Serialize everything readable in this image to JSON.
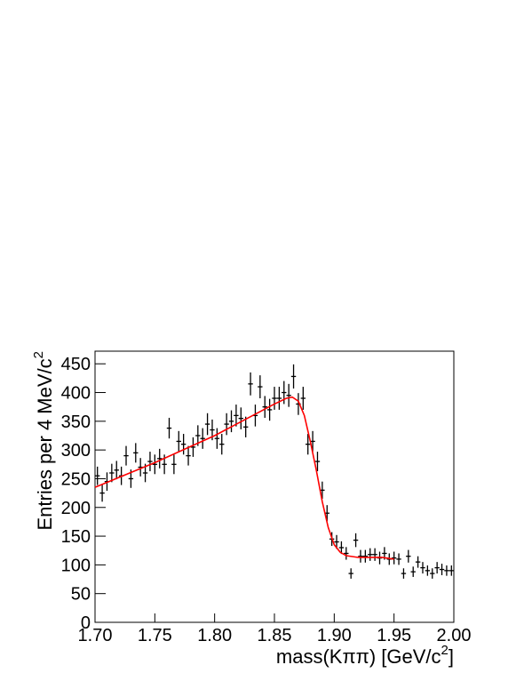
{
  "chart_data": {
    "type": "errorbar",
    "x_label": "mass(Kππ) [GeV/c",
    "x_label_sup": "2",
    "x_label_end": "]",
    "y_label": "Entries per 4 MeV/c",
    "y_label_sup": "2",
    "xlim": [
      1.7,
      2.0
    ],
    "xticks": [
      {
        "value": 1.7,
        "label": "1.70"
      },
      1.75,
      {
        "value": 1.8,
        "label": "1.80"
      },
      1.85,
      {
        "value": 1.9,
        "label": "1.90"
      },
      1.95,
      {
        "value": 2.0,
        "label": "2.00"
      }
    ],
    "ylim": [
      0,
      472
    ],
    "yticks": [
      0,
      50,
      100,
      150,
      200,
      250,
      300,
      350,
      400,
      450
    ],
    "bin_width": 0.004,
    "series": [
      {
        "color": "#000000",
        "x": [
          1.702,
          1.706,
          1.71,
          1.714,
          1.718,
          1.722,
          1.726,
          1.73,
          1.734,
          1.738,
          1.742,
          1.746,
          1.75,
          1.754,
          1.758,
          1.762,
          1.766,
          1.77,
          1.774,
          1.778,
          1.782,
          1.786,
          1.79,
          1.794,
          1.798,
          1.802,
          1.806,
          1.81,
          1.814,
          1.818,
          1.822,
          1.826,
          1.83,
          1.834,
          1.838,
          1.842,
          1.846,
          1.85,
          1.854,
          1.858,
          1.862,
          1.866,
          1.87,
          1.874,
          1.878,
          1.882,
          1.886,
          1.89,
          1.894,
          1.898,
          1.902,
          1.906,
          1.91,
          1.914,
          1.918,
          1.922,
          1.926,
          1.93,
          1.934,
          1.938,
          1.942,
          1.946,
          1.95,
          1.954,
          1.958,
          1.962,
          1.966,
          1.97,
          1.974,
          1.978,
          1.982,
          1.986,
          1.99,
          1.994,
          1.998
        ],
        "values": [
          255,
          225,
          245,
          260,
          265,
          255,
          290,
          250,
          295,
          270,
          260,
          280,
          275,
          285,
          275,
          338,
          275,
          315,
          310,
          290,
          305,
          325,
          320,
          345,
          335,
          320,
          310,
          345,
          350,
          360,
          355,
          340,
          415,
          360,
          410,
          375,
          370,
          390,
          390,
          400,
          395,
          428,
          380,
          390,
          310,
          315,
          280,
          230,
          190,
          145,
          140,
          130,
          120,
          85,
          143,
          115,
          115,
          118,
          118,
          112,
          120,
          110,
          112,
          110,
          85,
          115,
          88,
          105,
          95,
          90,
          85,
          95,
          92,
          90,
          90
        ],
        "errors": [
          16,
          15,
          16,
          16,
          16,
          16,
          17,
          16,
          17,
          16,
          16,
          17,
          17,
          17,
          17,
          18,
          17,
          18,
          18,
          17,
          17,
          18,
          18,
          19,
          18,
          18,
          18,
          19,
          19,
          19,
          19,
          18,
          20,
          19,
          20,
          19,
          19,
          20,
          20,
          20,
          20,
          21,
          19,
          20,
          18,
          18,
          17,
          15,
          14,
          12,
          12,
          11,
          11,
          9,
          12,
          11,
          11,
          11,
          11,
          11,
          11,
          10,
          11,
          10,
          9,
          11,
          9,
          10,
          10,
          9,
          9,
          10,
          10,
          9,
          9
        ]
      },
      {
        "color": "#ff0000",
        "x": [
          1.7,
          1.75,
          1.8,
          1.85,
          1.86,
          1.865,
          1.87,
          1.875,
          1.88,
          1.885,
          1.89,
          1.895,
          1.9,
          1.905,
          1.91,
          1.92,
          1.93,
          1.94,
          1.95
        ],
        "values": [
          235,
          278,
          325,
          380,
          390,
          392,
          385,
          360,
          315,
          265,
          210,
          165,
          135,
          122,
          116,
          113,
          113,
          113,
          110
        ]
      }
    ]
  }
}
